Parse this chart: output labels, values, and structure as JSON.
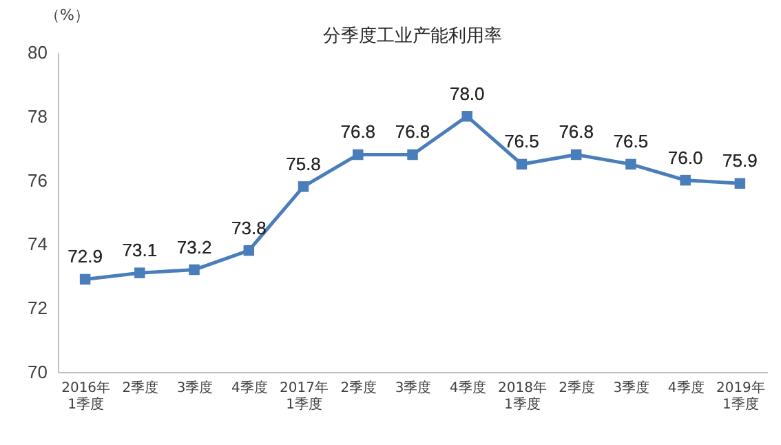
{
  "chart_data": {
    "type": "line",
    "title": "分季度工业产能利用率",
    "ylabel": "（%）",
    "categories": [
      "2016年\n1季度",
      "2季度",
      "3季度",
      "4季度",
      "2017年\n1季度",
      "2季度",
      "3季度",
      "4季度",
      "2018年\n1季度",
      "2季度",
      "3季度",
      "4季度",
      "2019年\n1季度"
    ],
    "series": [
      {
        "color": "#4a7ebb",
        "values": [
          72.9,
          73.1,
          73.2,
          73.8,
          75.8,
          76.8,
          76.8,
          78.0,
          76.5,
          76.8,
          76.5,
          76.0,
          75.9
        ],
        "value_labels": [
          "72.9",
          "73.1",
          "73.2",
          "73.8",
          "75.8",
          "76.8",
          "76.8",
          "78.0",
          "76.5",
          "76.8",
          "76.5",
          "76.0",
          "75.9"
        ]
      }
    ],
    "ylim": [
      70,
      80
    ],
    "yticks": [
      70,
      72,
      74,
      76,
      78,
      80
    ],
    "data_labels": true,
    "marker": "square",
    "line_style": "solid",
    "grid": false,
    "legend": false
  }
}
